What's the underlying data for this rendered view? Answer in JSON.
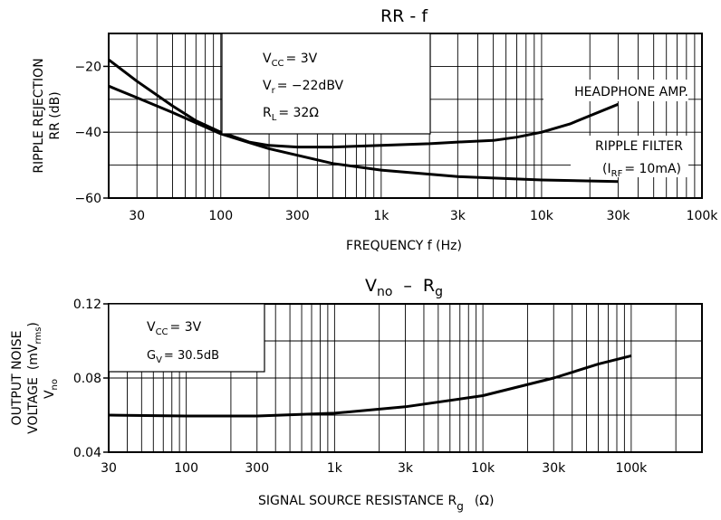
{
  "chart_data": [
    {
      "type": "line",
      "title": "RR - f",
      "x_scale": "log",
      "y_scale": "linear",
      "xlim": [
        20,
        100000
      ],
      "ylim": [
        -60,
        -10
      ],
      "x_ticks": [
        30,
        100,
        300,
        1000,
        3000,
        10000,
        30000,
        100000
      ],
      "x_tick_labels": [
        "30",
        "100",
        "300",
        "1k",
        "3k",
        "10k",
        "30k",
        "100k"
      ],
      "y_ticks": [
        -20,
        -40,
        -60
      ],
      "y_tick_labels": [
        "−20",
        "−40",
        "−60"
      ],
      "xlabel": "FREQUENCY  f  (Hz)",
      "ylabel": [
        "RIPPLE REJECTION",
        "RR  (dB)"
      ],
      "grid": true,
      "conditions": [
        {
          "text": "V",
          "sub": "CC",
          "rest": "= 3V"
        },
        {
          "text": "V",
          "sub": "r",
          "rest": "= −22dBV"
        },
        {
          "text": "R",
          "sub": "L",
          "rest": "= 32Ω"
        }
      ],
      "series": [
        {
          "name": "HEADPHONE AMP.",
          "x": [
            20,
            30,
            50,
            70,
            100,
            150,
            200,
            300,
            500,
            1000,
            2000,
            3000,
            5000,
            7000,
            10000,
            15000,
            20000,
            30000
          ],
          "y": [
            -18,
            -24.5,
            -32,
            -36.5,
            -40,
            -43,
            -44,
            -44.5,
            -44.5,
            -44,
            -43.5,
            -43,
            -42.5,
            -41.5,
            -40,
            -37.5,
            -35,
            -31.5
          ]
        },
        {
          "name": "RIPPLE FILTER",
          "name_line2": {
            "open": "(I",
            "sub": "RF",
            "rest": "= 10mA)"
          },
          "x": [
            20,
            30,
            50,
            100,
            200,
            300,
            500,
            1000,
            3000,
            10000,
            30000
          ],
          "y": [
            -26,
            -29.5,
            -34,
            -40.5,
            -45,
            -47,
            -49.5,
            -51.5,
            -53.5,
            -54.5,
            -55
          ]
        }
      ]
    },
    {
      "type": "line",
      "title": "V_no - R_g",
      "title_parts": {
        "main": "V",
        "sub": "no",
        "dash": "–",
        "main2": "R",
        "sub2": "g"
      },
      "x_scale": "log",
      "y_scale": "linear",
      "xlim": [
        30,
        300000
      ],
      "ylim": [
        0.04,
        0.12
      ],
      "x_ticks": [
        30,
        100,
        300,
        1000,
        3000,
        10000,
        30000,
        100000
      ],
      "x_tick_labels": [
        "30",
        "100",
        "300",
        "1k",
        "3k",
        "10k",
        "30k",
        "100k"
      ],
      "y_ticks": [
        0.04,
        0.08,
        0.12
      ],
      "y_tick_labels": [
        "0.04",
        "0.08",
        "0.12"
      ],
      "xlabel": "SIGNAL SOURCE RESISTANCE  R",
      "xlabel_sub": "g",
      "xlabel_unit": "(Ω)",
      "ylabel": [
        "OUTPUT NOISE",
        "VOLTAGE",
        "V",
        "no",
        "(mV",
        "rms",
        ")"
      ],
      "grid": true,
      "conditions": [
        {
          "text": "V",
          "sub": "CC",
          "rest": "= 3V"
        },
        {
          "text": "G",
          "sub": "V",
          "rest": "= 30.5dB"
        }
      ],
      "series": [
        {
          "x": [
            30,
            100,
            300,
            1000,
            3000,
            10000,
            30000,
            60000,
            100000
          ],
          "y": [
            0.06,
            0.0595,
            0.0595,
            0.061,
            0.0645,
            0.0705,
            0.08,
            0.0875,
            0.092
          ]
        }
      ]
    }
  ]
}
